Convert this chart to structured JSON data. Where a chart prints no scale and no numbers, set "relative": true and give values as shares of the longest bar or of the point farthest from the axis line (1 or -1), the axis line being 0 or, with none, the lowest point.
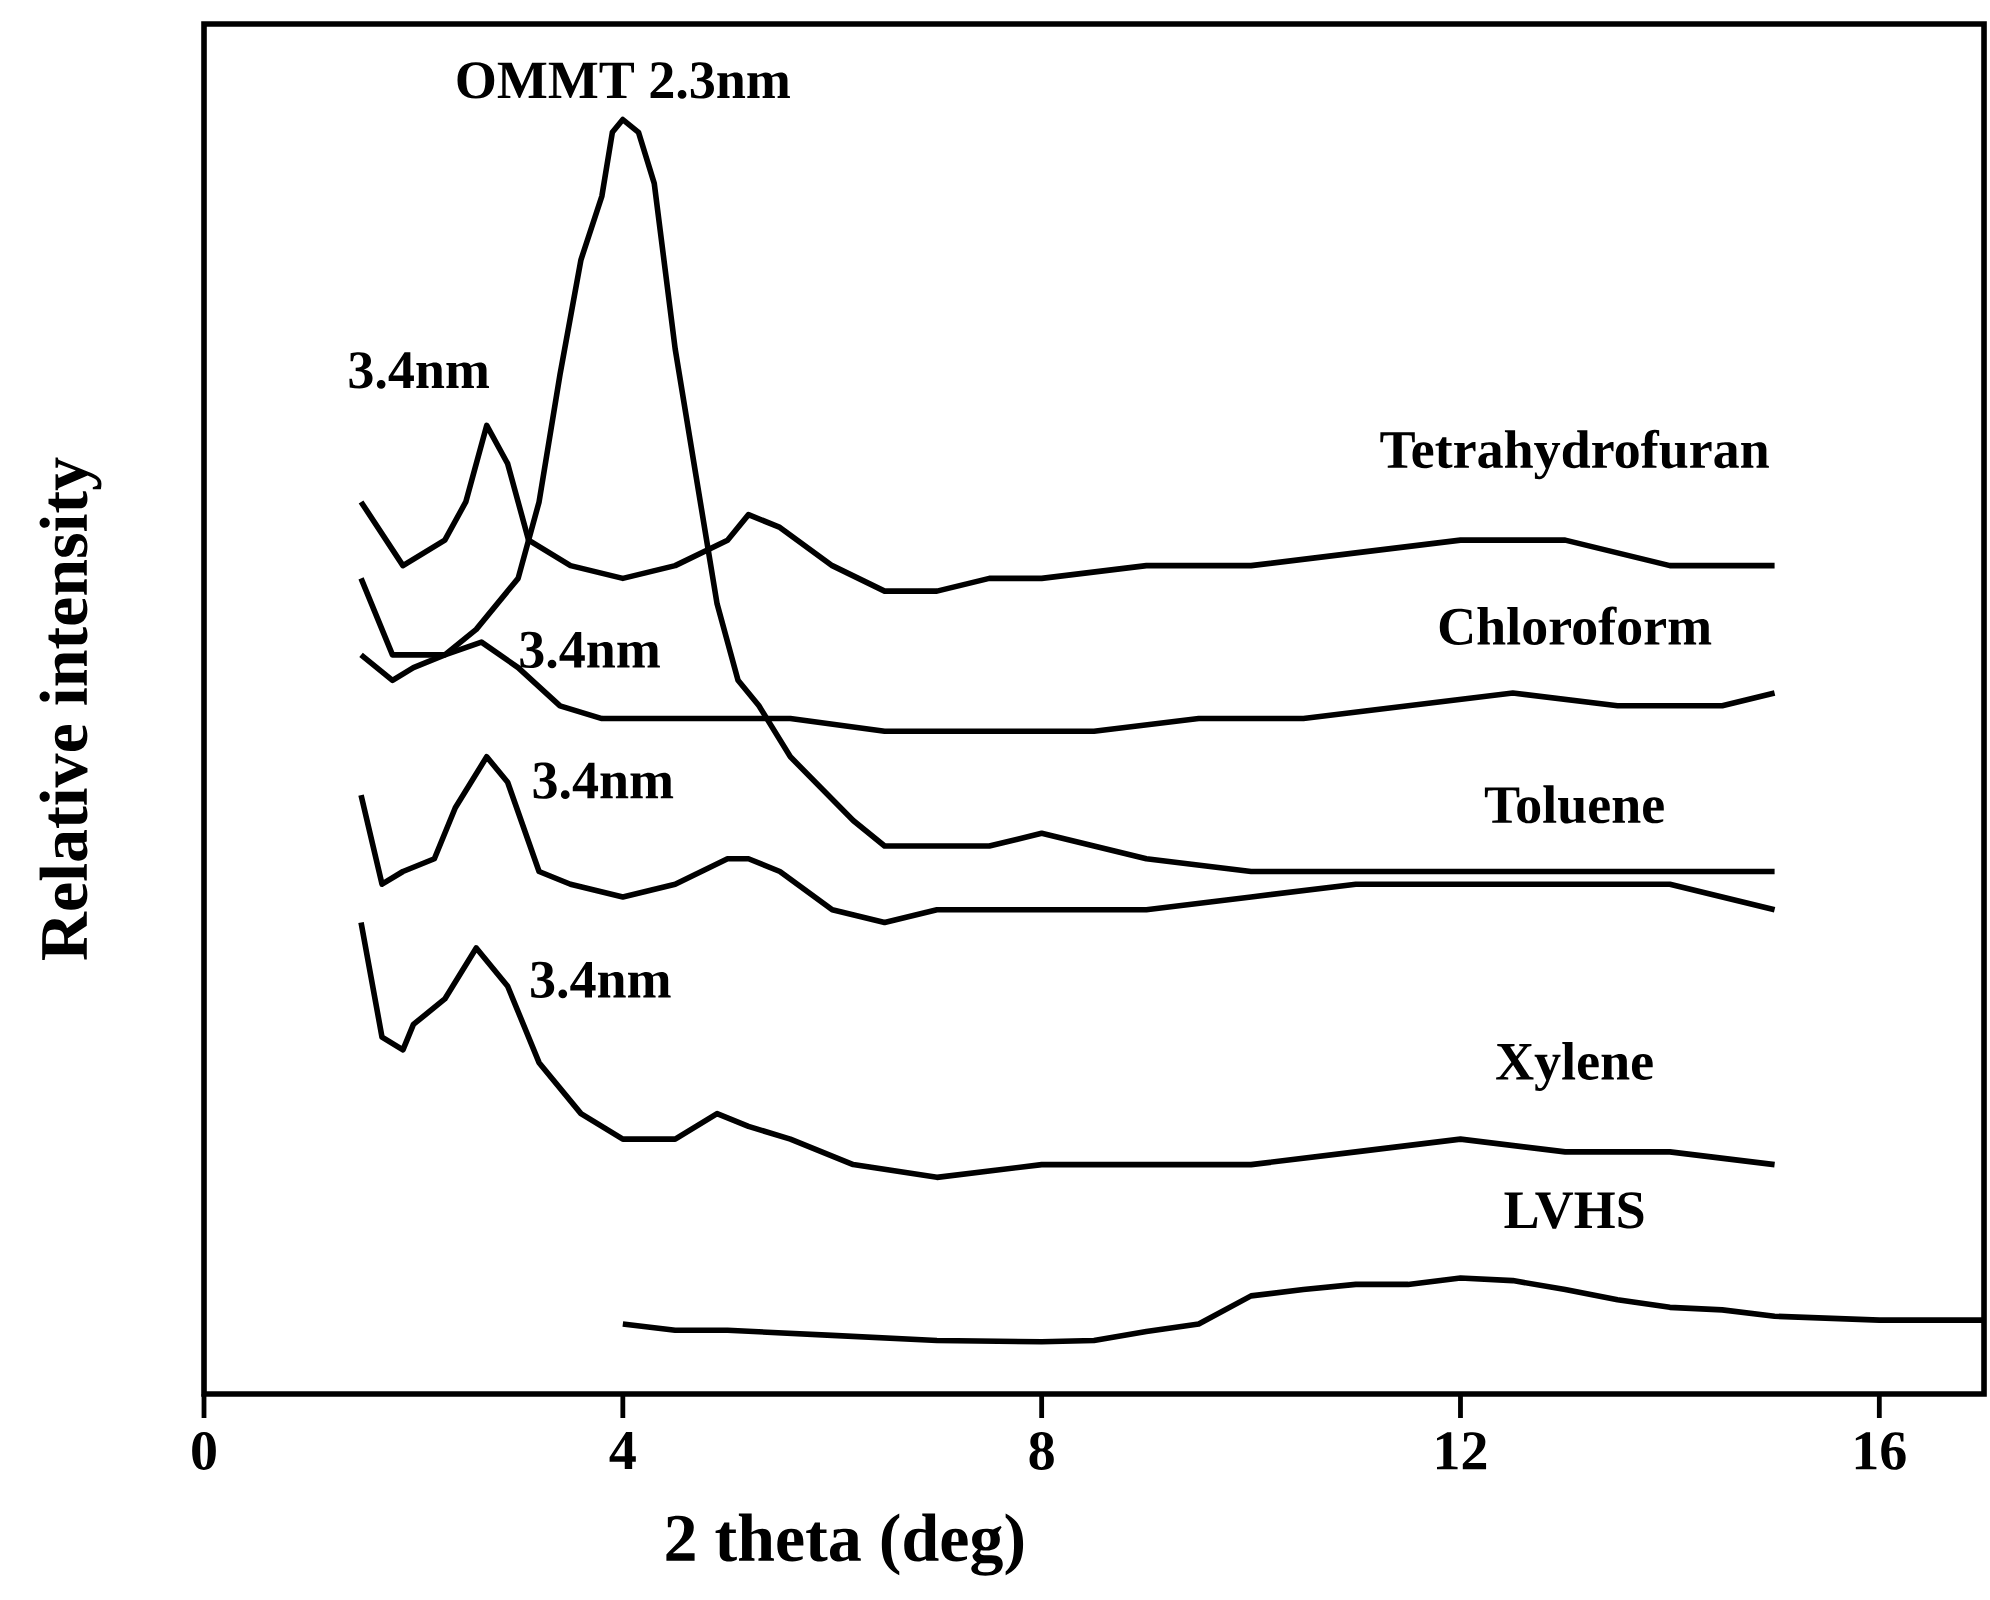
{
  "chart_data": {
    "type": "line",
    "relative": true,
    "xlabel": "2 theta (deg)",
    "ylabel": "Relative intensity",
    "xlim": [
      0,
      17
    ],
    "xticks": [
      0,
      4,
      8,
      12,
      16
    ],
    "series": [
      {
        "name": "Tetrahydrofuran",
        "color": "#000000",
        "x": [
          1.5,
          1.9,
          2.3,
          2.5,
          2.7,
          2.9,
          3.1,
          3.5,
          4.0,
          4.5,
          5.0,
          5.2,
          5.5,
          6.0,
          6.5,
          7.0,
          7.5,
          8.0,
          9,
          10,
          11,
          12,
          13,
          14,
          15
        ],
        "values": [
          0.7,
          0.65,
          0.67,
          0.7,
          0.76,
          0.73,
          0.67,
          0.65,
          0.64,
          0.65,
          0.67,
          0.69,
          0.68,
          0.65,
          0.63,
          0.63,
          0.64,
          0.64,
          0.65,
          0.65,
          0.66,
          0.67,
          0.67,
          0.65,
          0.65
        ]
      },
      {
        "name": "Chloroform",
        "color": "#000000",
        "x": [
          1.5,
          1.8,
          2.0,
          2.3,
          2.65,
          3.0,
          3.4,
          3.8,
          4.2,
          4.8,
          5.2,
          5.6,
          6.5,
          7.5,
          8.5,
          9.5,
          10.5,
          11.5,
          12.5,
          13.5,
          14.5,
          15
        ],
        "values": [
          0.64,
          0.58,
          0.58,
          0.58,
          0.59,
          0.57,
          0.54,
          0.53,
          0.53,
          0.53,
          0.53,
          0.53,
          0.52,
          0.52,
          0.52,
          0.53,
          0.53,
          0.54,
          0.55,
          0.54,
          0.54,
          0.55
        ]
      },
      {
        "color": "#000000",
        "x": [
          1.5,
          1.8,
          2.0,
          2.3,
          2.6,
          3.0,
          3.2,
          3.4,
          3.6,
          3.8,
          3.9,
          4.0,
          4.15,
          4.3,
          4.5,
          4.7,
          4.9,
          5.1,
          5.3,
          5.6,
          6.2,
          6.5,
          7.0,
          7.5,
          8.0,
          8.5,
          9,
          10,
          11,
          12,
          13,
          14,
          15
        ],
        "values": [
          0.58,
          0.56,
          0.57,
          0.58,
          0.6,
          0.64,
          0.7,
          0.8,
          0.89,
          0.94,
          0.99,
          1.0,
          0.99,
          0.95,
          0.82,
          0.72,
          0.62,
          0.56,
          0.54,
          0.5,
          0.45,
          0.43,
          0.43,
          0.43,
          0.44,
          0.43,
          0.42,
          0.41,
          0.41,
          0.41,
          0.41,
          0.41,
          0.41
        ]
      },
      {
        "name": "Toluene",
        "color": "#000000",
        "x": [
          1.5,
          1.7,
          1.9,
          2.2,
          2.4,
          2.7,
          2.9,
          3.2,
          3.5,
          4.0,
          4.5,
          5.0,
          5.2,
          5.5,
          6.0,
          6.5,
          7,
          8,
          9,
          10,
          11,
          12,
          13,
          14,
          15
        ],
        "values": [
          0.47,
          0.4,
          0.41,
          0.42,
          0.46,
          0.5,
          0.48,
          0.41,
          0.4,
          0.39,
          0.4,
          0.42,
          0.42,
          0.41,
          0.38,
          0.37,
          0.38,
          0.38,
          0.38,
          0.39,
          0.4,
          0.4,
          0.4,
          0.4,
          0.38
        ]
      },
      {
        "name": "Xylene",
        "color": "#000000",
        "x": [
          1.5,
          1.7,
          1.9,
          2.0,
          2.3,
          2.6,
          2.9,
          3.2,
          3.6,
          4.0,
          4.5,
          4.9,
          5.2,
          5.6,
          6.2,
          7,
          8,
          9,
          10,
          11,
          12,
          13,
          14,
          15
        ],
        "values": [
          0.37,
          0.28,
          0.27,
          0.29,
          0.31,
          0.35,
          0.32,
          0.26,
          0.22,
          0.2,
          0.2,
          0.22,
          0.21,
          0.2,
          0.18,
          0.17,
          0.18,
          0.18,
          0.18,
          0.19,
          0.2,
          0.19,
          0.19,
          0.18
        ]
      },
      {
        "name": "LVHS",
        "color": "#000000",
        "x": [
          4.0,
          4.5,
          5,
          6,
          7,
          8,
          8.5,
          9,
          9.5,
          10,
          10.5,
          11,
          11.5,
          12,
          12.5,
          13,
          13.5,
          14,
          14.5,
          15,
          16,
          17
        ],
        "values": [
          0.055,
          0.05,
          0.05,
          0.046,
          0.042,
          0.041,
          0.042,
          0.049,
          0.055,
          0.077,
          0.082,
          0.086,
          0.086,
          0.091,
          0.089,
          0.082,
          0.074,
          0.068,
          0.066,
          0.061,
          0.058,
          0.058
        ]
      }
    ],
    "annotations": [
      {
        "text": "OMMT 2.3nm",
        "x": 4.0,
        "y": 1.0
      },
      {
        "text": "3.4nm",
        "x": 2.7,
        "y": 0.76
      },
      {
        "text": "3.4nm",
        "x": 2.65,
        "y": 0.59
      },
      {
        "text": "3.4nm",
        "x": 2.7,
        "y": 0.5
      },
      {
        "text": "3.4nm",
        "x": 2.6,
        "y": 0.35
      }
    ]
  }
}
